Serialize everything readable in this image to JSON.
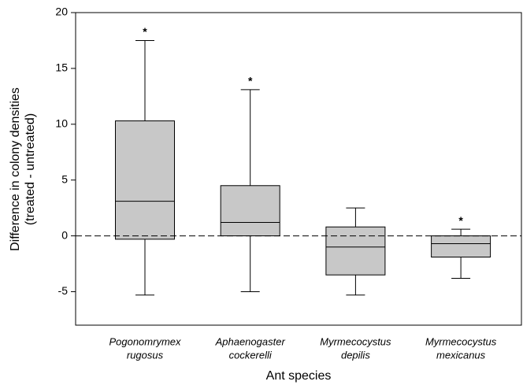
{
  "chart_data": {
    "type": "box",
    "y_label": [
      "Difference in colony densities",
      "(treated - untreated)"
    ],
    "x_label": "Ant species",
    "categories": [
      [
        "Pogonomrymex",
        "rugosus"
      ],
      [
        "Aphaenogaster",
        "cockerelli"
      ],
      [
        "Myrmecocystus",
        "depilis"
      ],
      [
        "Myrmecocystus",
        "mexicanus"
      ]
    ],
    "boxes": [
      {
        "low": -5.3,
        "q1": -0.3,
        "median": 3.1,
        "q3": 10.3,
        "high": 17.5
      },
      {
        "low": -5.0,
        "q1": 0.0,
        "median": 1.2,
        "q3": 4.5,
        "high": 13.1
      },
      {
        "low": -5.3,
        "q1": -3.5,
        "median": -1.0,
        "q3": 0.8,
        "high": 2.5
      },
      {
        "low": -3.8,
        "q1": -1.9,
        "median": -0.7,
        "q3": 0.0,
        "high": 0.6
      }
    ],
    "annotations": [
      "*",
      "*",
      null,
      "*"
    ],
    "reference_line": 0,
    "color": "#c8c8c8",
    "ylim": [
      -8,
      20
    ],
    "yticks": [
      -5,
      0,
      5,
      10,
      15,
      20
    ]
  }
}
